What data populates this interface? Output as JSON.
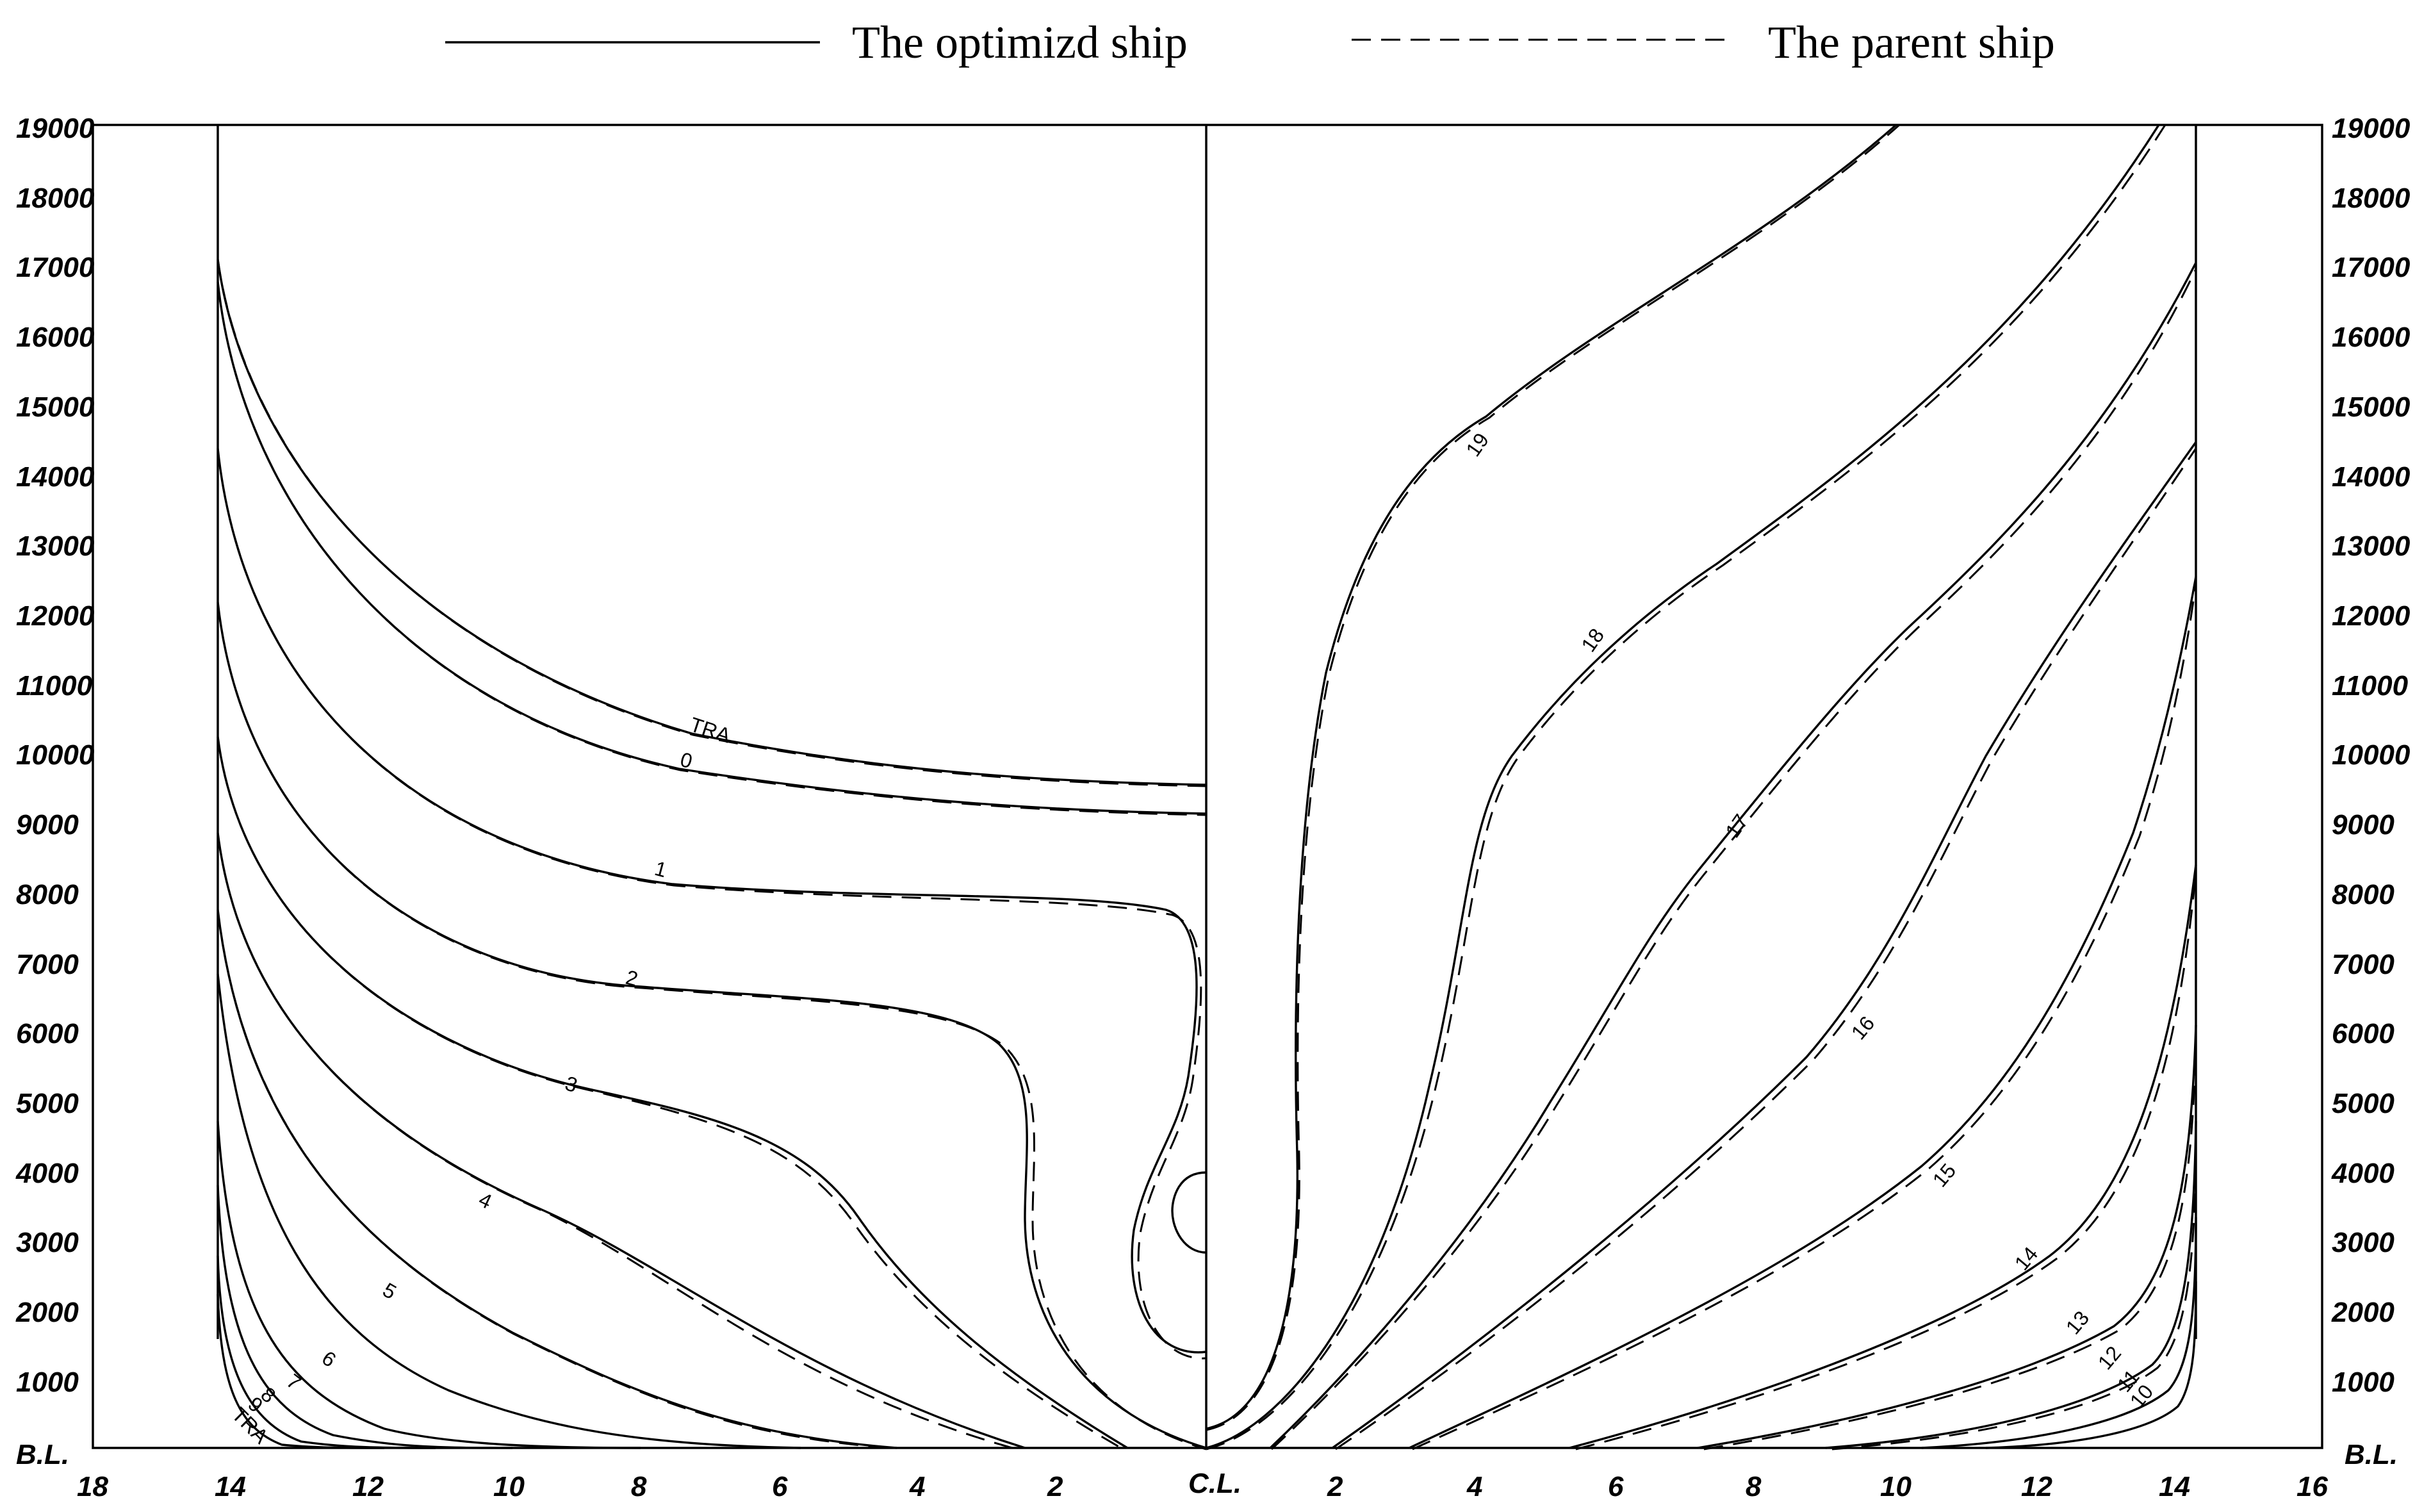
{
  "legend": {
    "optimized_label": "The optimizd ship",
    "parent_label": "The parent ship"
  },
  "axes": {
    "left_y_ticks": [
      "19000",
      "18000",
      "17000",
      "16000",
      "15000",
      "14000",
      "13000",
      "12000",
      "11000",
      "10000",
      "9000",
      "8000",
      "7000",
      "6000",
      "5000",
      "4000",
      "3000",
      "2000",
      "1000"
    ],
    "right_y_ticks": [
      "19000",
      "18000",
      "17000",
      "16000",
      "15000",
      "14000",
      "13000",
      "12000",
      "11000",
      "10000",
      "9000",
      "8000",
      "7000",
      "6000",
      "5000",
      "4000",
      "3000",
      "2000",
      "1000"
    ],
    "left_corner_label": "B.L.",
    "right_corner_label": "B.L.",
    "x_ticks_left": [
      "18",
      "14",
      "12",
      "10",
      "8",
      "6",
      "4",
      "2"
    ],
    "centerline_label": "C.L.",
    "x_ticks_right": [
      "2",
      "4",
      "6",
      "8",
      "10",
      "12",
      "14",
      "16"
    ]
  },
  "station_labels": {
    "left": [
      "TRA",
      "0",
      "1",
      "2",
      "3",
      "4",
      "5",
      "6",
      "7",
      "8",
      "9",
      "TRA"
    ],
    "right": [
      "19",
      "18",
      "17",
      "16",
      "15",
      "14",
      "13",
      "12",
      "11",
      "10"
    ]
  }
}
